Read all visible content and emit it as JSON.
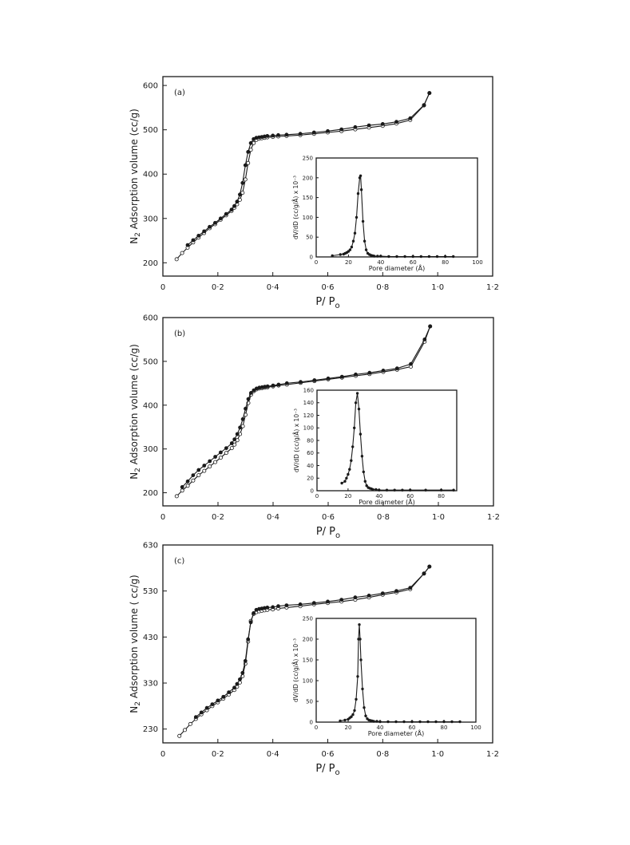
{
  "chart_data": [
    {
      "type": "line",
      "panel_label": "(a)",
      "xlabel": "P/Po",
      "ylabel": "N2 Adsorption volume (cc/g)",
      "xlim": [
        0,
        1.2
      ],
      "ylim": [
        170,
        620
      ],
      "x_ticks": [
        0,
        0.2,
        0.4,
        0.6,
        0.8,
        1.0,
        1.2
      ],
      "x_tick_labels": [
        "0",
        "0·2",
        "0·4",
        "0·6",
        "0·8",
        "1·0",
        "1·2"
      ],
      "y_ticks": [
        200,
        300,
        400,
        500,
        600
      ],
      "y_tick_labels": [
        "200",
        "300",
        "400",
        "500",
        "600"
      ],
      "series": [
        {
          "marker": "open",
          "x": [
            0.05,
            0.07,
            0.09,
            0.11,
            0.13,
            0.15,
            0.17,
            0.19,
            0.21,
            0.23,
            0.25,
            0.26,
            0.27,
            0.28,
            0.29,
            0.3,
            0.31,
            0.32,
            0.33,
            0.34,
            0.35,
            0.36,
            0.37,
            0.38,
            0.4,
            0.42,
            0.45,
            0.5,
            0.55,
            0.6,
            0.65,
            0.7,
            0.75,
            0.8,
            0.85,
            0.9,
            0.95,
            0.97
          ],
          "y": [
            208,
            222,
            234,
            246,
            257,
            267,
            278,
            287,
            297,
            307,
            317,
            324,
            332,
            342,
            358,
            388,
            425,
            455,
            470,
            477,
            480,
            481,
            482,
            483,
            484,
            485,
            486,
            488,
            491,
            494,
            497,
            501,
            505,
            509,
            514,
            522,
            555,
            583
          ]
        },
        {
          "marker": "filled",
          "x": [
            0.97,
            0.95,
            0.9,
            0.85,
            0.8,
            0.75,
            0.7,
            0.65,
            0.6,
            0.55,
            0.5,
            0.45,
            0.42,
            0.4,
            0.38,
            0.37,
            0.36,
            0.35,
            0.34,
            0.33,
            0.32,
            0.31,
            0.3,
            0.29,
            0.28,
            0.27,
            0.26,
            0.25,
            0.23,
            0.21,
            0.19,
            0.17,
            0.15,
            0.13,
            0.11,
            0.09
          ],
          "y": [
            583,
            556,
            526,
            518,
            513,
            510,
            506,
            501,
            497,
            494,
            491,
            489,
            488,
            487,
            486,
            485,
            484,
            483,
            482,
            479,
            470,
            450,
            420,
            380,
            354,
            338,
            328,
            320,
            310,
            300,
            290,
            281,
            271,
            261,
            251,
            240
          ]
        }
      ],
      "inset": {
        "type": "line",
        "xlabel": "Pore diameter (Å)",
        "ylabel": "dV/dD (cc/g/Å) x 10⁻³",
        "xlim": [
          0,
          100
        ],
        "ylim": [
          0,
          250
        ],
        "x_ticks": [
          0,
          20,
          40,
          60,
          80,
          100
        ],
        "x_tick_labels": [
          "0",
          "20",
          "40",
          "60",
          "80",
          "100"
        ],
        "y_ticks": [
          0,
          50,
          100,
          150,
          200,
          250
        ],
        "y_tick_labels": [
          "0",
          "50",
          "100",
          "150",
          "200",
          "250"
        ],
        "x": [
          10,
          15,
          17,
          18,
          19,
          20,
          21,
          22,
          23,
          24,
          25,
          26,
          27,
          27.5,
          28,
          29,
          30,
          31,
          32,
          33,
          34,
          35,
          36,
          38,
          40,
          45,
          50,
          55,
          60,
          65,
          70,
          75,
          80,
          85
        ],
        "y": [
          3,
          6,
          7,
          9,
          11,
          14,
          18,
          25,
          40,
          60,
          100,
          160,
          200,
          205,
          170,
          90,
          40,
          18,
          9,
          6,
          4,
          3,
          2,
          2,
          2,
          1,
          1,
          1,
          1,
          1,
          1,
          1,
          1,
          1
        ]
      }
    },
    {
      "type": "line",
      "panel_label": "(b)",
      "xlabel": "P/Po",
      "ylabel": "N2 Adsorption volume (cc/g)",
      "xlim": [
        0,
        1.2
      ],
      "ylim": [
        170,
        600
      ],
      "x_ticks": [
        0,
        0.2,
        0.4,
        0.6,
        0.8,
        1.0,
        1.2
      ],
      "x_tick_labels": [
        "0",
        "0·2",
        "0·4",
        "0·6",
        "0·8",
        "1·0",
        "1·2"
      ],
      "y_ticks": [
        200,
        300,
        400,
        500,
        600
      ],
      "y_tick_labels": [
        "200",
        "300",
        "400",
        "500",
        "600"
      ],
      "series": [
        {
          "marker": "open",
          "x": [
            0.05,
            0.07,
            0.09,
            0.11,
            0.13,
            0.15,
            0.17,
            0.19,
            0.21,
            0.23,
            0.25,
            0.26,
            0.27,
            0.28,
            0.29,
            0.3,
            0.31,
            0.32,
            0.33,
            0.34,
            0.35,
            0.36,
            0.37,
            0.38,
            0.4,
            0.42,
            0.45,
            0.5,
            0.55,
            0.6,
            0.65,
            0.7,
            0.75,
            0.8,
            0.85,
            0.9,
            0.95,
            0.97
          ],
          "y": [
            192,
            205,
            216,
            228,
            240,
            250,
            260,
            270,
            280,
            291,
            302,
            310,
            320,
            334,
            352,
            378,
            405,
            424,
            432,
            436,
            438,
            439,
            440,
            441,
            443,
            445,
            447,
            451,
            455,
            459,
            463,
            467,
            471,
            476,
            481,
            488,
            545,
            580
          ]
        },
        {
          "marker": "filled",
          "x": [
            0.97,
            0.95,
            0.9,
            0.85,
            0.8,
            0.75,
            0.7,
            0.65,
            0.6,
            0.55,
            0.5,
            0.45,
            0.42,
            0.4,
            0.38,
            0.37,
            0.36,
            0.35,
            0.34,
            0.33,
            0.32,
            0.31,
            0.3,
            0.29,
            0.28,
            0.27,
            0.26,
            0.25,
            0.23,
            0.21,
            0.19,
            0.17,
            0.15,
            0.13,
            0.11,
            0.09,
            0.07
          ],
          "y": [
            580,
            550,
            494,
            484,
            479,
            474,
            470,
            465,
            461,
            457,
            453,
            450,
            447,
            445,
            443,
            442,
            441,
            440,
            438,
            434,
            428,
            414,
            392,
            368,
            349,
            334,
            322,
            313,
            302,
            292,
            282,
            272,
            262,
            252,
            240,
            226,
            213
          ]
        }
      ],
      "inset": {
        "type": "line",
        "xlabel": "Pore diameter (Å)",
        "ylabel": "dV/dD (cc/g/Å) x 10⁻³",
        "xlim": [
          0,
          90
        ],
        "ylim": [
          0,
          160
        ],
        "x_ticks": [
          0,
          20,
          40,
          60,
          80
        ],
        "x_tick_labels": [
          "0",
          "20",
          "40",
          "60",
          "80"
        ],
        "y_ticks": [
          0,
          20,
          40,
          60,
          80,
          100,
          120,
          140,
          160
        ],
        "y_tick_labels": [
          "0",
          "20",
          "40",
          "60",
          "80",
          "100",
          "120",
          "140",
          "160"
        ],
        "x": [
          16,
          18,
          19,
          20,
          21,
          22,
          23,
          24,
          25,
          26,
          27,
          28,
          29,
          30,
          31,
          32,
          33,
          34,
          35,
          36,
          38,
          40,
          45,
          50,
          55,
          60,
          70,
          80,
          88
        ],
        "y": [
          12,
          15,
          20,
          26,
          34,
          48,
          70,
          100,
          140,
          155,
          130,
          90,
          55,
          30,
          15,
          8,
          5,
          4,
          3,
          2,
          2,
          1,
          1,
          1,
          1,
          1,
          1,
          1,
          1
        ]
      }
    },
    {
      "type": "line",
      "panel_label": "(c)",
      "xlabel": "P/Po",
      "ylabel": "N2 Adsorption volume ( cc/g)",
      "xlim": [
        0,
        1.2
      ],
      "ylim": [
        200,
        630
      ],
      "x_ticks": [
        0,
        0.2,
        0.4,
        0.6,
        0.8,
        1.0,
        1.2
      ],
      "x_tick_labels": [
        "0",
        "0·2",
        "0·4",
        "0·6",
        "0·8",
        "1·0",
        "1·2"
      ],
      "y_ticks": [
        230,
        330,
        430,
        530,
        630
      ],
      "y_tick_labels": [
        "230",
        "330",
        "430",
        "530",
        "630"
      ],
      "series": [
        {
          "marker": "open",
          "x": [
            0.06,
            0.08,
            0.1,
            0.12,
            0.14,
            0.16,
            0.18,
            0.2,
            0.22,
            0.24,
            0.26,
            0.27,
            0.28,
            0.29,
            0.3,
            0.31,
            0.32,
            0.33,
            0.34,
            0.35,
            0.36,
            0.37,
            0.38,
            0.4,
            0.42,
            0.45,
            0.5,
            0.55,
            0.6,
            0.65,
            0.7,
            0.75,
            0.8,
            0.85,
            0.9,
            0.95,
            0.97
          ],
          "y": [
            215,
            228,
            241,
            252,
            262,
            271,
            280,
            288,
            296,
            305,
            315,
            322,
            331,
            345,
            372,
            420,
            465,
            480,
            484,
            486,
            487,
            488,
            489,
            490,
            492,
            494,
            497,
            501,
            504,
            507,
            511,
            516,
            522,
            527,
            534,
            568,
            583
          ]
        },
        {
          "marker": "filled",
          "x": [
            0.97,
            0.95,
            0.9,
            0.85,
            0.8,
            0.75,
            0.7,
            0.65,
            0.6,
            0.55,
            0.5,
            0.45,
            0.42,
            0.4,
            0.38,
            0.37,
            0.36,
            0.35,
            0.34,
            0.33,
            0.32,
            0.31,
            0.3,
            0.29,
            0.28,
            0.27,
            0.26,
            0.24,
            0.22,
            0.2,
            0.18,
            0.16,
            0.14,
            0.12
          ],
          "y": [
            583,
            568,
            537,
            530,
            525,
            520,
            516,
            511,
            507,
            504,
            501,
            499,
            497,
            495,
            494,
            493,
            492,
            491,
            489,
            482,
            462,
            425,
            378,
            352,
            338,
            328,
            320,
            310,
            300,
            292,
            284,
            276,
            266,
            256
          ]
        }
      ],
      "inset": {
        "type": "line",
        "xlabel": "Pore diameter (Å)",
        "ylabel": "dV/dD (cc/g/Å) x 10⁻³",
        "xlim": [
          0,
          100
        ],
        "ylim": [
          0,
          250
        ],
        "x_ticks": [
          0,
          20,
          40,
          60,
          80,
          100
        ],
        "x_tick_labels": [
          "0",
          "20",
          "40",
          "60",
          "80",
          "100"
        ],
        "y_ticks": [
          0,
          50,
          100,
          150,
          200,
          250
        ],
        "y_tick_labels": [
          "0",
          "50",
          "100",
          "150",
          "200",
          "250"
        ],
        "x": [
          15,
          18,
          20,
          21,
          22,
          23,
          24,
          25,
          26,
          26.5,
          27,
          27.5,
          28,
          29,
          30,
          31,
          32,
          33,
          34,
          35,
          36,
          38,
          40,
          45,
          50,
          55,
          60,
          65,
          70,
          75,
          80,
          85,
          90
        ],
        "y": [
          3,
          5,
          7,
          10,
          13,
          18,
          28,
          55,
          110,
          200,
          235,
          200,
          150,
          80,
          35,
          15,
          8,
          5,
          4,
          3,
          2,
          2,
          1,
          1,
          1,
          1,
          1,
          1,
          1,
          1,
          1,
          1,
          1
        ]
      }
    }
  ]
}
